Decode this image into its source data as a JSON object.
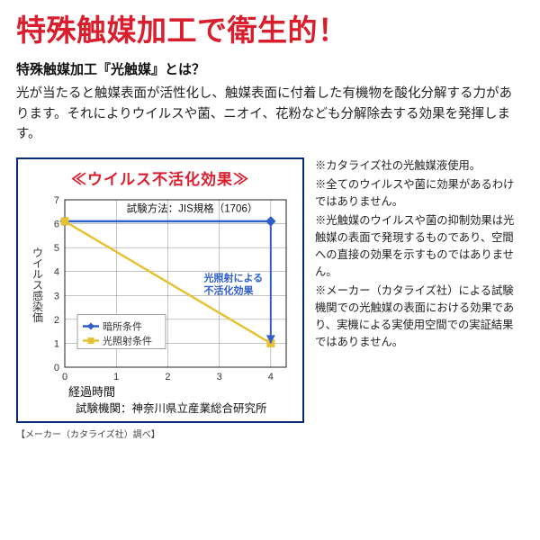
{
  "headline": "特殊触媒加工で衛生的！",
  "subhead": "特殊触媒加工『光触媒』とは？",
  "body": "光が当たると触媒表面が活性化し、触媒表面に付着した有機物を酸化分解する力があります。それによりウイルスや菌、ニオイ、花粉なども分解除去する効果を発揮します。",
  "chart": {
    "title": "≪ウイルス不活化効果≫",
    "type": "line",
    "x_values": [
      0,
      1,
      2,
      3,
      4
    ],
    "y_ticks": [
      0,
      1,
      2,
      3,
      4,
      5,
      6,
      7
    ],
    "xlim": [
      0,
      4.3
    ],
    "ylim": [
      0,
      7
    ],
    "series": [
      {
        "name": "暗所条件",
        "color": "#2f5fc9",
        "marker": "diamond",
        "data": [
          [
            0,
            6.1
          ],
          [
            4,
            6.1
          ]
        ]
      },
      {
        "name": "光照射条件",
        "color": "#e6c233",
        "marker": "square",
        "data": [
          [
            0,
            6.1
          ],
          [
            4,
            1.0
          ]
        ]
      }
    ],
    "effect_arrow": {
      "x": 4,
      "y_top": 6.1,
      "y_bot": 1.0,
      "color": "#2f5fc9"
    },
    "effect_label": "光照射による\n不活化効果",
    "y_axis_label": "ウイルス感染価",
    "x_axis_label": "経過時間",
    "method_label": "試験方法：JIS規格（1706）",
    "institution_label": "試験機関：神奈川県立産業総合研究所",
    "grid_color": "#888888",
    "axis_color": "#222222",
    "legend_box_line": "#888888",
    "label_fontsize": 12,
    "title_fontsize": 17
  },
  "notes": [
    "※カタライズ社の光触媒液使用。",
    "※全てのウイルスや菌に効果があるわけではありません。",
    "※光触媒のウイルスや菌の抑制効果は光触媒の表面で発現するものであり、空間への直接の効果を示すものではありません。",
    "※メーカー（カタライズ社）による試験機関での光触媒の表面における効果であり、実機による実使用空間での実証結果ではありません。"
  ],
  "credit": "【メーカー（カタライズ社）調べ】"
}
